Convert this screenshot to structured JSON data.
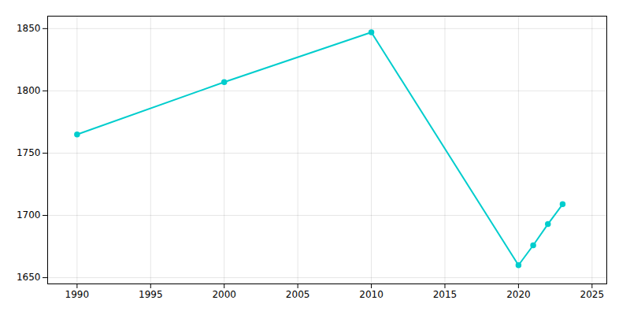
{
  "chart_data": {
    "type": "line",
    "x": [
      1990,
      2000,
      2010,
      2020,
      2021,
      2022,
      2023
    ],
    "values": [
      1765,
      1807,
      1847,
      1660,
      1676,
      1693,
      1709
    ],
    "color": "#00CDCD",
    "marker": "circle",
    "xlim": [
      1988,
      2026
    ],
    "ylim": [
      1645,
      1860
    ],
    "xticks": [
      1990,
      1995,
      2000,
      2005,
      2010,
      2015,
      2020,
      2025
    ],
    "yticks": [
      1650,
      1700,
      1750,
      1800,
      1850
    ],
    "grid": true
  }
}
